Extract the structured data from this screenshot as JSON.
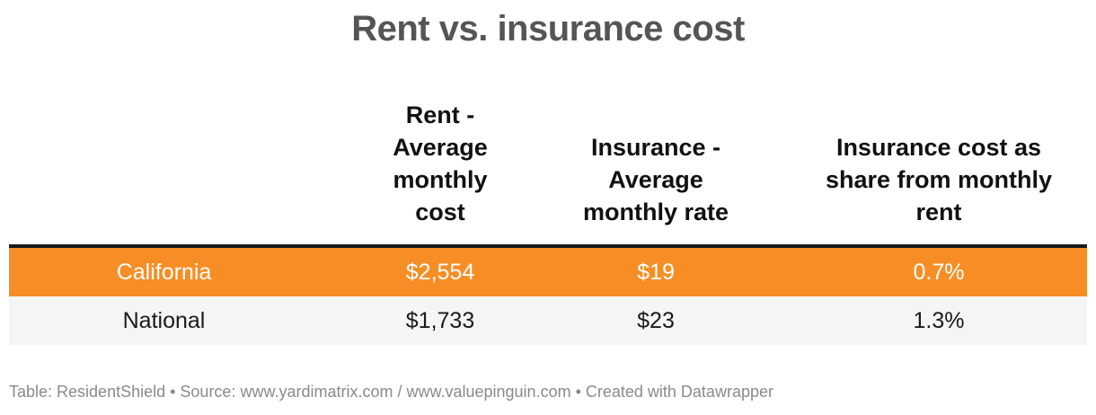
{
  "chart_data": {
    "type": "table",
    "title": "Rent vs. insurance cost",
    "columns": [
      "",
      "Rent - Average monthly cost",
      "Insurance - Average monthly rate",
      "Insurance cost as share from monthly rent"
    ],
    "header_lines": {
      "rent": [
        "Rent -",
        "Average",
        "monthly",
        "cost"
      ],
      "insurance": [
        "Insurance -",
        "Average",
        "monthly rate"
      ],
      "share": [
        "Insurance cost as",
        "share from monthly",
        "rent"
      ]
    },
    "rows": [
      {
        "name": "California",
        "rent": "$2,554",
        "insurance": "$19",
        "share": "0.7%",
        "highlight": true
      },
      {
        "name": "National",
        "rent": "$1,733",
        "insurance": "$23",
        "share": "1.3%",
        "highlight": false
      }
    ],
    "values": {
      "rent": [
        2554,
        1733
      ],
      "insurance": [
        19,
        23
      ],
      "share_percent": [
        0.7,
        1.3
      ]
    },
    "highlight_color": "#f68e25",
    "footer": "Table: ResidentShield • Source: www.yardimatrix.com / www.valuepinguin.com • Created with Datawrapper"
  }
}
